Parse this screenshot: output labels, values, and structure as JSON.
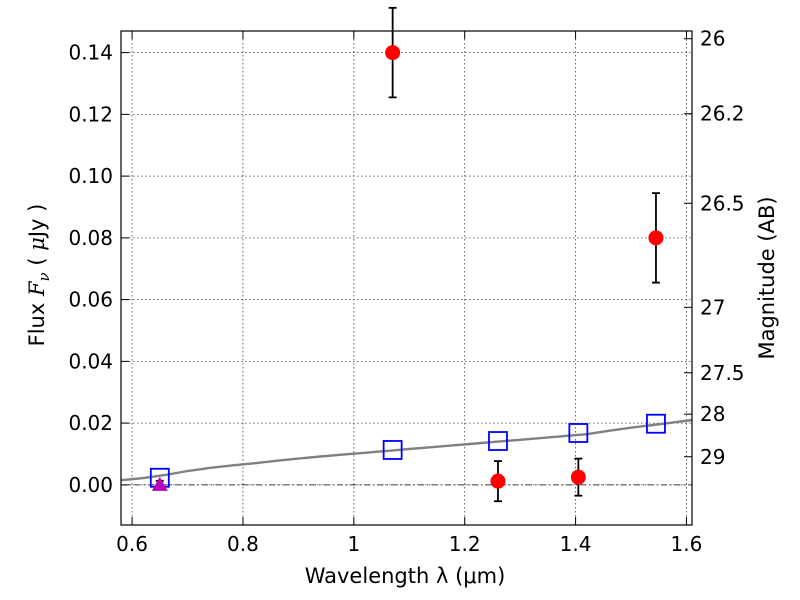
{
  "chart_data": {
    "type": "scatter",
    "xlabel": "Wavelength  λ (μm)",
    "ylabel": "Flux  F_ν  ( μJy )",
    "y2label": "Magnitude (AB)",
    "xlim": [
      0.58,
      1.61
    ],
    "ylim": [
      -0.013,
      0.147
    ],
    "xticks": [
      0.6,
      0.8,
      1.0,
      1.2,
      1.4,
      1.6
    ],
    "xtick_labels": [
      "0.6",
      "0.8",
      "1",
      "1.2",
      "1.4",
      "1.6"
    ],
    "yticks": [
      0.0,
      0.02,
      0.04,
      0.06,
      0.08,
      0.1,
      0.12,
      0.14
    ],
    "ytick_labels": [
      "0.00",
      "0.02",
      "0.04",
      "0.06",
      "0.08",
      "0.10",
      "0.12",
      "0.14"
    ],
    "y2ticks": [
      {
        "label": "26",
        "flux": 0.1445
      },
      {
        "label": "26.2",
        "flux": 0.1202
      },
      {
        "label": "26.5",
        "flux": 0.0912
      },
      {
        "label": "27",
        "flux": 0.0575
      },
      {
        "label": "27.5",
        "flux": 0.0363
      },
      {
        "label": "28",
        "flux": 0.0229
      },
      {
        "label": "29",
        "flux": 0.0091
      }
    ],
    "grid": true,
    "series": [
      {
        "marker": "circle",
        "color": "#ff0000",
        "points": [
          {
            "x": 1.07,
            "y": 0.14,
            "err": 0.0145
          },
          {
            "x": 1.545,
            "y": 0.08,
            "err": 0.0145
          },
          {
            "x": 1.26,
            "y": 0.0012,
            "err": 0.0065
          },
          {
            "x": 1.405,
            "y": 0.0025,
            "err": 0.006
          }
        ]
      },
      {
        "marker": "open-square",
        "color": "#0000ff",
        "points": [
          {
            "x": 0.65,
            "y": 0.0023
          },
          {
            "x": 1.07,
            "y": 0.0113
          },
          {
            "x": 1.26,
            "y": 0.0142
          },
          {
            "x": 1.405,
            "y": 0.0168
          },
          {
            "x": 1.545,
            "y": 0.0198
          }
        ]
      },
      {
        "marker": "triangle",
        "color": "#bb00bb",
        "points": [
          {
            "x": 0.65,
            "y": 0.0,
            "err": 0.0013
          }
        ]
      },
      {
        "marker": "line",
        "color": "#808080",
        "points": [
          {
            "x": 0.58,
            "y": 0.0015
          },
          {
            "x": 0.62,
            "y": 0.0022
          },
          {
            "x": 0.66,
            "y": 0.0032
          },
          {
            "x": 0.7,
            "y": 0.0045
          },
          {
            "x": 0.74,
            "y": 0.0055
          },
          {
            "x": 0.78,
            "y": 0.0063
          },
          {
            "x": 0.82,
            "y": 0.007
          },
          {
            "x": 0.86,
            "y": 0.0078
          },
          {
            "x": 0.9,
            "y": 0.0085
          },
          {
            "x": 0.94,
            "y": 0.0092
          },
          {
            "x": 0.98,
            "y": 0.0098
          },
          {
            "x": 1.02,
            "y": 0.0104
          },
          {
            "x": 1.06,
            "y": 0.011
          },
          {
            "x": 1.1,
            "y": 0.0116
          },
          {
            "x": 1.14,
            "y": 0.0122
          },
          {
            "x": 1.18,
            "y": 0.0128
          },
          {
            "x": 1.22,
            "y": 0.0134
          },
          {
            "x": 1.26,
            "y": 0.014
          },
          {
            "x": 1.3,
            "y": 0.0146
          },
          {
            "x": 1.34,
            "y": 0.0152
          },
          {
            "x": 1.38,
            "y": 0.0158
          },
          {
            "x": 1.42,
            "y": 0.0164
          },
          {
            "x": 1.46,
            "y": 0.0175
          },
          {
            "x": 1.5,
            "y": 0.0185
          },
          {
            "x": 1.54,
            "y": 0.0194
          },
          {
            "x": 1.58,
            "y": 0.0203
          },
          {
            "x": 1.61,
            "y": 0.021
          }
        ]
      }
    ]
  }
}
